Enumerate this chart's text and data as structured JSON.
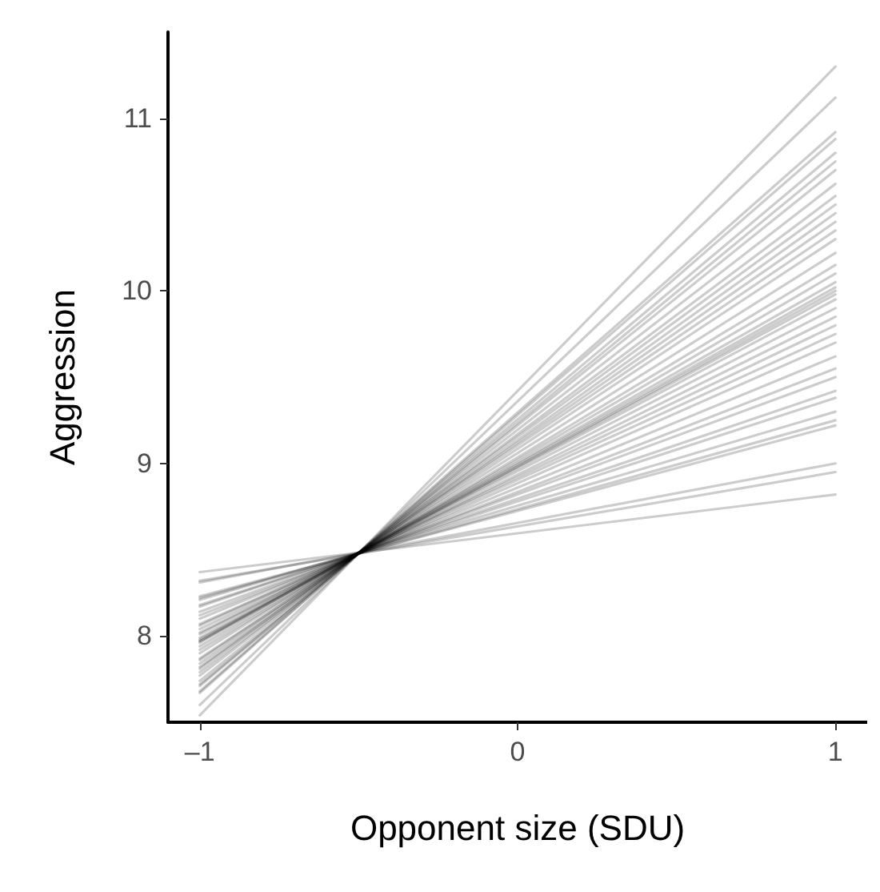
{
  "chart_data": {
    "type": "line",
    "xlabel": "Opponent size (SDU)",
    "ylabel": "Aggression",
    "x": [
      -1,
      1
    ],
    "xlim": [
      -1.1,
      1.1
    ],
    "xticks": [
      {
        "value": -1,
        "label": "–1"
      },
      0,
      1
    ],
    "ylim": [
      7.5,
      11.5
    ],
    "yticks": [
      8,
      9,
      10,
      11
    ],
    "grid": false,
    "marker": "none",
    "line_style": "solid",
    "series": [
      {
        "color": "#000000",
        "values": [
          7.54,
          11.3
        ]
      },
      {
        "color": "#000000",
        "values": [
          7.6,
          11.12
        ]
      },
      {
        "color": "#000000",
        "values": [
          7.67,
          10.92
        ]
      },
      {
        "color": "#000000",
        "values": [
          7.68,
          10.88
        ]
      },
      {
        "color": "#000000",
        "values": [
          7.71,
          10.8
        ]
      },
      {
        "color": "#000000",
        "values": [
          7.72,
          10.75
        ]
      },
      {
        "color": "#000000",
        "values": [
          7.74,
          10.7
        ]
      },
      {
        "color": "#000000",
        "values": [
          7.77,
          10.62
        ]
      },
      {
        "color": "#000000",
        "values": [
          7.79,
          10.55
        ]
      },
      {
        "color": "#000000",
        "values": [
          7.81,
          10.5
        ]
      },
      {
        "color": "#000000",
        "values": [
          7.82,
          10.45
        ]
      },
      {
        "color": "#000000",
        "values": [
          7.84,
          10.4
        ]
      },
      {
        "color": "#000000",
        "values": [
          7.86,
          10.35
        ]
      },
      {
        "color": "#000000",
        "values": [
          7.87,
          10.3
        ]
      },
      {
        "color": "#000000",
        "values": [
          7.9,
          10.22
        ]
      },
      {
        "color": "#000000",
        "values": [
          7.92,
          10.15
        ]
      },
      {
        "color": "#000000",
        "values": [
          7.94,
          10.1
        ]
      },
      {
        "color": "#000000",
        "values": [
          7.96,
          10.05
        ]
      },
      {
        "color": "#000000",
        "values": [
          7.97,
          10.02
        ]
      },
      {
        "color": "#000000",
        "values": [
          7.97,
          10.0
        ]
      },
      {
        "color": "#000000",
        "values": [
          7.98,
          9.98
        ]
      },
      {
        "color": "#000000",
        "values": [
          7.99,
          9.95
        ]
      },
      {
        "color": "#000000",
        "values": [
          8.01,
          9.9
        ]
      },
      {
        "color": "#000000",
        "values": [
          8.02,
          9.85
        ]
      },
      {
        "color": "#000000",
        "values": [
          8.04,
          9.8
        ]
      },
      {
        "color": "#000000",
        "values": [
          8.06,
          9.75
        ]
      },
      {
        "color": "#000000",
        "values": [
          8.07,
          9.7
        ]
      },
      {
        "color": "#000000",
        "values": [
          8.1,
          9.62
        ]
      },
      {
        "color": "#000000",
        "values": [
          8.12,
          9.55
        ]
      },
      {
        "color": "#000000",
        "values": [
          8.14,
          9.5
        ]
      },
      {
        "color": "#000000",
        "values": [
          8.17,
          9.42
        ]
      },
      {
        "color": "#000000",
        "values": [
          8.18,
          9.38
        ]
      },
      {
        "color": "#000000",
        "values": [
          8.21,
          9.3
        ]
      },
      {
        "color": "#000000",
        "values": [
          8.22,
          9.25
        ]
      },
      {
        "color": "#000000",
        "values": [
          8.23,
          9.22
        ]
      },
      {
        "color": "#000000",
        "values": [
          8.31,
          9.0
        ]
      },
      {
        "color": "#000000",
        "values": [
          8.32,
          8.95
        ]
      },
      {
        "color": "#000000",
        "values": [
          8.37,
          8.82
        ]
      }
    ]
  }
}
